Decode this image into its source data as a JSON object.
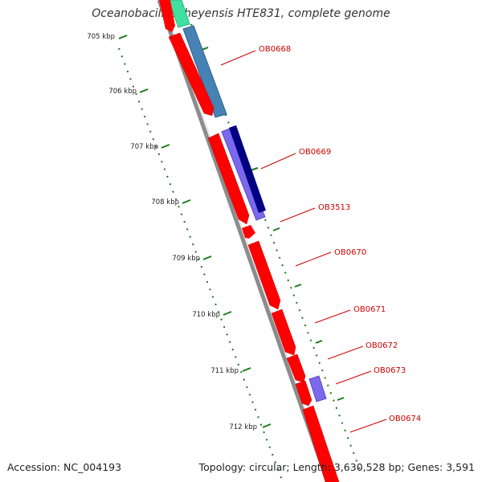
{
  "title": "Oceanobacillus iheyensis HTE831, complete genome",
  "accession": "Accession: NC_004193",
  "summary": "Topology: circular; Length: 3,630,528 bp; Genes: 3,591",
  "kbp_ticks": [
    {
      "label": "705 kbp"
    },
    {
      "label": "706 kbp"
    },
    {
      "label": "707 kbp"
    },
    {
      "label": "708 kbp"
    },
    {
      "label": "709 kbp"
    },
    {
      "label": "710 kbp"
    },
    {
      "label": "711 kbp"
    },
    {
      "label": "712 kbp"
    }
  ],
  "genes": [
    {
      "label": "OB0668"
    },
    {
      "label": "OB0669"
    },
    {
      "label": "OB3513"
    },
    {
      "label": "OB0670"
    },
    {
      "label": "OB0671"
    },
    {
      "label": "OB0672"
    },
    {
      "label": "OB0673"
    },
    {
      "label": "OB0674"
    }
  ],
  "colors": {
    "cds": "#ff0000",
    "blast_teal": "#4682b4",
    "blast_navy": "#000080",
    "blast_purple": "#7b68ee",
    "blast_aqua": "#40e0a0",
    "tick_green": "#1a7a1a",
    "backbone": "#888888"
  }
}
